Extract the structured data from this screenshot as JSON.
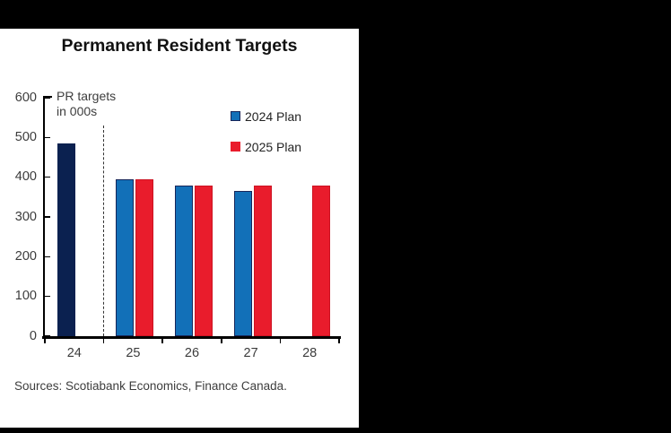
{
  "chart": {
    "title": "Permanent Resident Targets",
    "annotation_line1": "PR targets",
    "annotation_line2": "in 000s",
    "source_note": "Sources: Scotiabank Economics, Finance Canada."
  },
  "chart_data": {
    "type": "bar",
    "title": "Permanent Resident Targets",
    "unit_note": "PR targets in 000s",
    "categories": [
      "24",
      "25",
      "26",
      "27",
      "28"
    ],
    "series": [
      {
        "name": "2024 Plan",
        "values": [
          485,
          395,
          380,
          365,
          null
        ],
        "fill": "#1270b8",
        "stroke": "#17265a",
        "bar_overrides": {
          "0": {
            "fill": "#0b2150",
            "stroke": "#0b2150"
          }
        }
      },
      {
        "name": "2025 Plan",
        "values": [
          null,
          395,
          380,
          380,
          380
        ],
        "fill": "#e91c2c",
        "stroke": "#cc1322"
      }
    ],
    "y_axis": {
      "ticks": [
        0,
        100,
        200,
        300,
        400,
        500,
        600
      ],
      "ylim": [
        0,
        600
      ]
    },
    "x_axis": {
      "tick_labels": [
        "24",
        "25",
        "26",
        "27",
        "28"
      ]
    },
    "separator": {
      "after_category_index": 0,
      "style": "dashed-vertical-line"
    },
    "legend": {
      "position": "upper-middle",
      "entries": [
        "2024 Plan",
        "2025 Plan"
      ]
    },
    "grid": false,
    "colors": {
      "bar_2024_actual": "#0b2150",
      "bar_2024_plan": "#1270b8",
      "bar_2025_plan": "#e91c2c",
      "axis": "#000000",
      "text": "#3c3c3c"
    }
  }
}
